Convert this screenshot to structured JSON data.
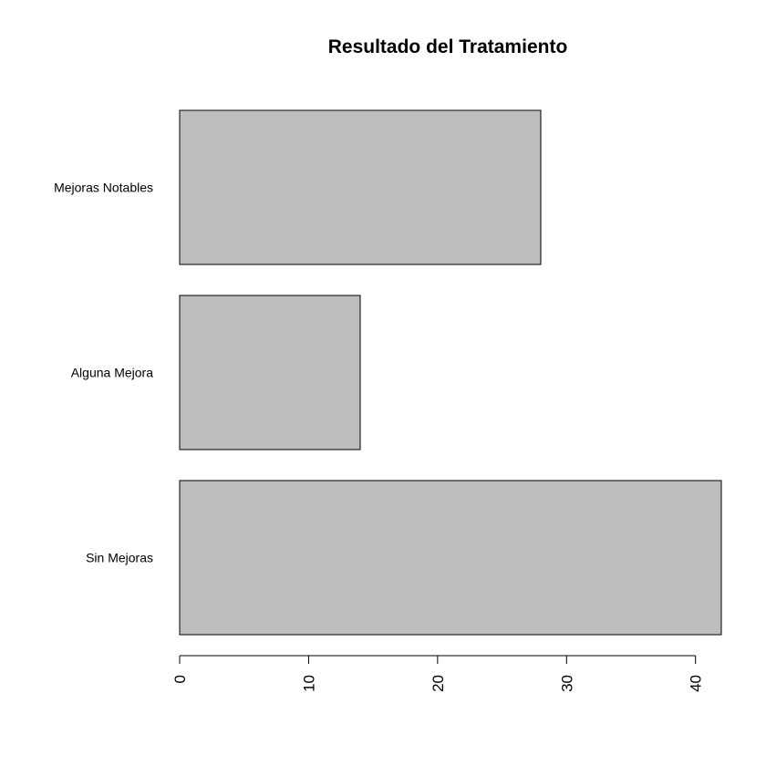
{
  "chart_data": {
    "type": "bar",
    "orientation": "horizontal",
    "title": "Resultado del Tratamiento",
    "xlabel": "",
    "ylabel": "",
    "categories": [
      "Sin Mejoras",
      "Alguna Mejora",
      "Mejoras Notables"
    ],
    "values": [
      42,
      14,
      28
    ],
    "xlim": [
      0,
      42
    ],
    "xticks": [
      0,
      10,
      20,
      30,
      40
    ],
    "tick_labels": [
      "0",
      "10",
      "20",
      "30",
      "40"
    ],
    "bar_color": "#bebebe",
    "grid": false,
    "legend": "none"
  }
}
